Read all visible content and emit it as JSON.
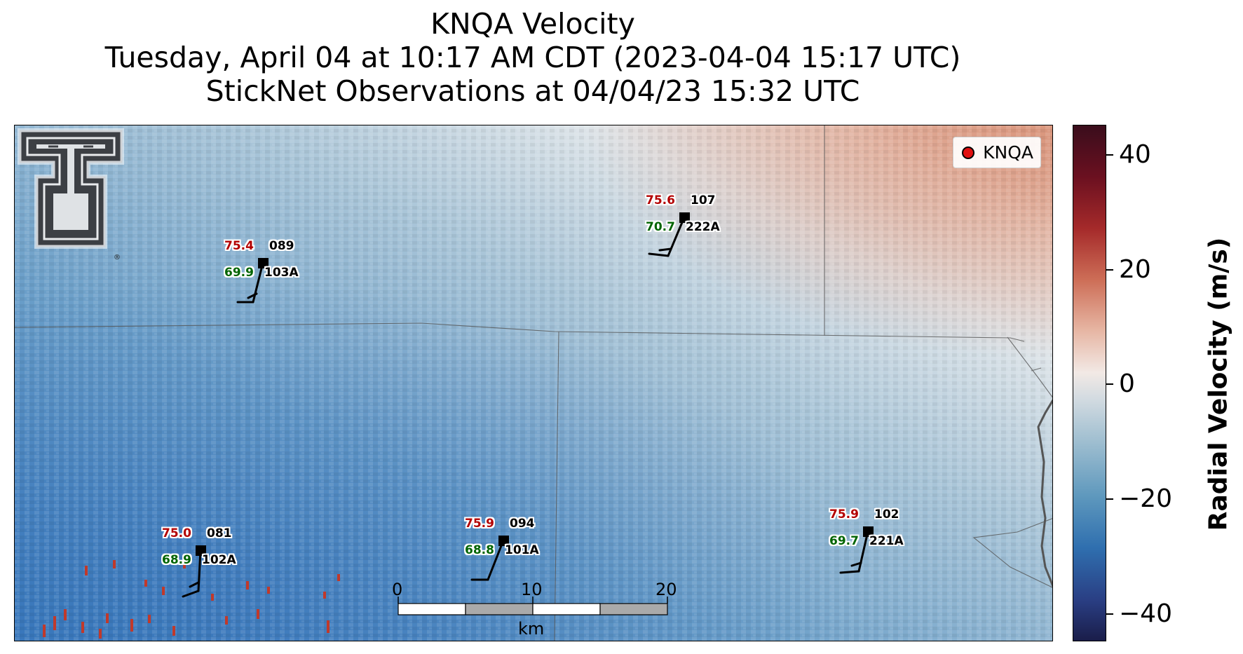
{
  "title": {
    "line1": "KNQA Velocity",
    "line2": "Tuesday, April 04 at 10:17 AM CDT (2023-04-04 15:17 UTC)",
    "line3": "StickNet Observations at 04/04/23 15:32 UTC"
  },
  "legend": {
    "label": "KNQA",
    "marker_color": "#e01010"
  },
  "logo": {
    "name": "Texas Tech Double T",
    "registered_mark": "®"
  },
  "stations": [
    {
      "id": "089",
      "probe": "103A",
      "temp": "75.4",
      "dewpoint": "69.9"
    },
    {
      "id": "107",
      "probe": "222A",
      "temp": "75.6",
      "dewpoint": "70.7"
    },
    {
      "id": "081",
      "probe": "102A",
      "temp": "75.0",
      "dewpoint": "68.9"
    },
    {
      "id": "094",
      "probe": "101A",
      "temp": "75.9",
      "dewpoint": "68.8"
    },
    {
      "id": "102",
      "probe": "221A",
      "temp": "75.9",
      "dewpoint": "69.7"
    }
  ],
  "scale_bar": {
    "ticks": [
      "0",
      "10",
      "20"
    ],
    "unit": "km"
  },
  "colorbar": {
    "label": "Radial Velocity (m/s)",
    "range": [
      -45,
      45
    ],
    "ticks": [
      "40",
      "20",
      "0",
      "−20",
      "−40"
    ],
    "colors": [
      "#3a0d1c",
      "#a52a2a",
      "#f2e9e5",
      "#5e98bd",
      "#1a1d4a"
    ]
  },
  "colors": {
    "temp_text": "#b30000",
    "dewpoint_text": "#006400",
    "border_lines": "#555555"
  }
}
